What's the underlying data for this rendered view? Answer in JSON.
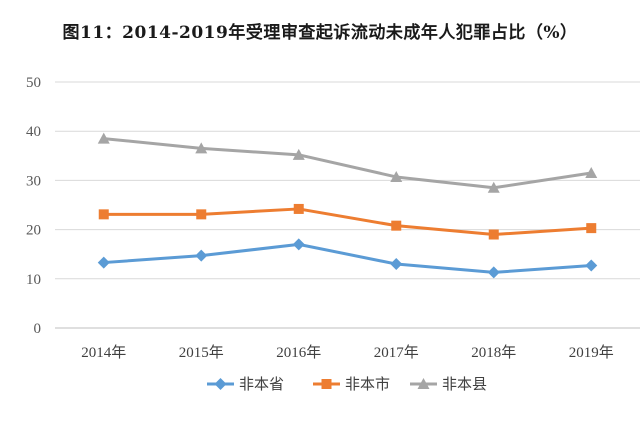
{
  "chart_data": {
    "type": "line",
    "title": "图11：2014-2019年受理审查起诉流动未成年人犯罪占比（%）",
    "xlabel": "",
    "ylabel": "",
    "categories": [
      "2014年",
      "2015年",
      "2016年",
      "2017年",
      "2018年",
      "2019年"
    ],
    "ylim": [
      0,
      50
    ],
    "yticks": [
      "0",
      "10",
      "20",
      "30",
      "40",
      "50"
    ],
    "grid": true,
    "legend_position": "bottom",
    "series": [
      {
        "name": "非本省",
        "values": [
          13.3,
          14.7,
          17.0,
          13.0,
          11.3,
          12.7
        ],
        "color": "#5b9bd5",
        "marker": "diamond"
      },
      {
        "name": "非本市",
        "values": [
          23.1,
          23.1,
          24.2,
          20.8,
          19.0,
          20.3
        ],
        "color": "#ed7d31",
        "marker": "square"
      },
      {
        "name": "非本县",
        "values": [
          38.5,
          36.5,
          35.2,
          30.7,
          28.5,
          31.5
        ],
        "color": "#a5a5a5",
        "marker": "triangle"
      }
    ]
  }
}
